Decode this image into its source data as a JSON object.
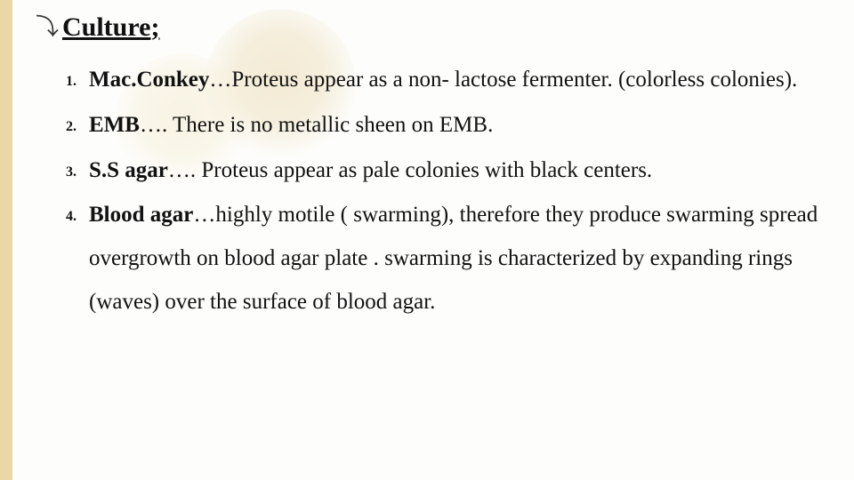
{
  "colors": {
    "background": "#fdfdfb",
    "sidebar": "#e8d8a8",
    "bgCircle1": "#efe3c3",
    "bgCircle2": "#f3ead0",
    "text": "#111111"
  },
  "bullet_glyph": "⤵",
  "heading": {
    "text": "Culture",
    "suffix": ";"
  },
  "items": [
    {
      "lead": "Mac.Conkey",
      "rest": "…Proteus appear as a non- lactose fermenter. (colorless colonies)."
    },
    {
      "lead": "EMB",
      "rest": "…. There is no metallic sheen on EMB."
    },
    {
      "lead": "S.S agar",
      "rest": "…. Proteus appear as pale colonies with black centers."
    },
    {
      "lead": "Blood agar",
      "rest": "…highly motile ( swarming), therefore they produce swarming spread overgrowth on blood agar plate . swarming is characterized by  expanding rings (waves) over the surface of blood agar."
    }
  ]
}
